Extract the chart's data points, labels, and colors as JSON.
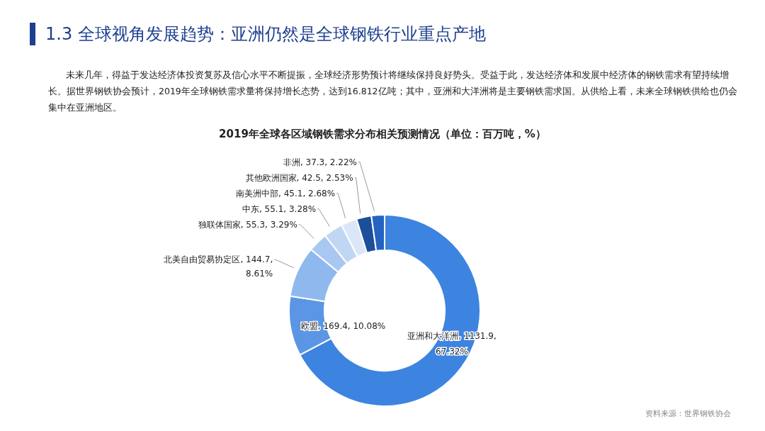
{
  "chart_data": {
    "type": "donut",
    "title": "2019年全球各区域钢铁需求分布相关预测情况（单位：百万吨，%）",
    "categories": [
      "亚洲和大洋洲",
      "欧盟",
      "北美自由贸易协定区",
      "独联体国家",
      "中东",
      "南美洲中部",
      "其他欧洲国家",
      "非洲"
    ],
    "values": [
      1131.9,
      169.4,
      144.7,
      55.3,
      55.1,
      45.1,
      42.5,
      37.3
    ],
    "value_labels": [
      "1131.9, 67.32%",
      "169.4, 10.08%",
      "144.7, 8.61%",
      "55.3, 3.29%",
      "55.1, 3.28%",
      "45.1, 2.68%",
      "42.5, 2.53%",
      "37.3, 2.22%"
    ],
    "colors": [
      "#3d84e0",
      "#5b96e4",
      "#8fb8ee",
      "#a9c8f1",
      "#c0d7f4",
      "#dbe7f8",
      "#1b4f9a",
      "#2563c0"
    ],
    "annotations": [
      "1.3 全球视角发展趋势：亚洲仍然是全球钢铁行业重点产地",
      "未来几年，得益于发达经济体投资复苏及信心水平不断提振，全球经济形势预计将继续保持良好势头。受益于此，发达经济体和发展中经济体的钢铁需求有望持续增长。据世界钢铁协会预计，2019年全球钢铁需求量将保持增长态势，达到16.812亿吨；其中，亚洲和大洋洲将是主要钢铁需求国。从供给上看，未来全球钢铁供给也仍会集中在亚洲地区。",
      "资料来源：世界钢铁协会"
    ],
    "legend": false
  }
}
